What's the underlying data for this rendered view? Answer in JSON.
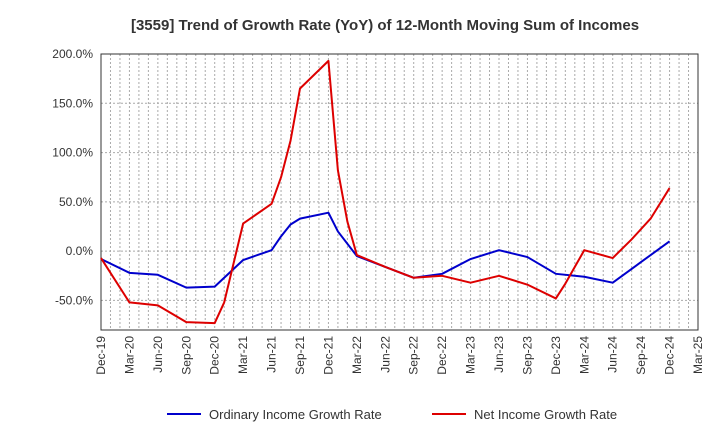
{
  "chart_data": {
    "type": "line",
    "title": "[3559]  Trend of Growth Rate (YoY) of 12-Month Moving Sum of Incomes",
    "xlabel": "",
    "ylabel": "",
    "ylim": [
      -80,
      200
    ],
    "yticks": [
      {
        "value": 200,
        "label": "200.0%"
      },
      {
        "value": 150,
        "label": "150.0%"
      },
      {
        "value": 100,
        "label": "100.0%"
      },
      {
        "value": 50,
        "label": "50.0%"
      },
      {
        "value": 0,
        "label": "0.0%"
      },
      {
        "value": -50,
        "label": "-50.0%"
      }
    ],
    "x_months": [
      "Dec-19",
      "Jan-20",
      "Feb-20",
      "Mar-20",
      "Apr-20",
      "May-20",
      "Jun-20",
      "Jul-20",
      "Aug-20",
      "Sep-20",
      "Oct-20",
      "Nov-20",
      "Dec-20",
      "Jan-21",
      "Feb-21",
      "Mar-21",
      "Apr-21",
      "May-21",
      "Jun-21",
      "Jul-21",
      "Aug-21",
      "Sep-21",
      "Oct-21",
      "Nov-21",
      "Dec-21",
      "Jan-22",
      "Feb-22",
      "Mar-22",
      "Apr-22",
      "May-22",
      "Jun-22",
      "Jul-22",
      "Aug-22",
      "Sep-22",
      "Oct-22",
      "Nov-22",
      "Dec-22",
      "Jan-23",
      "Feb-23",
      "Mar-23",
      "Apr-23",
      "May-23",
      "Jun-23",
      "Jul-23",
      "Aug-23",
      "Sep-23",
      "Oct-23",
      "Nov-23",
      "Dec-23",
      "Jan-24",
      "Feb-24",
      "Mar-24",
      "Apr-24",
      "May-24",
      "Jun-24",
      "Jul-24",
      "Aug-24",
      "Sep-24",
      "Oct-24",
      "Nov-24",
      "Dec-24",
      "Jan-25",
      "Feb-25",
      "Mar-25"
    ],
    "x_tick_labels": [
      "Dec-19",
      "Mar-20",
      "Jun-20",
      "Sep-20",
      "Dec-20",
      "Mar-21",
      "Jun-21",
      "Sep-21",
      "Dec-21",
      "Mar-22",
      "Jun-22",
      "Sep-22",
      "Dec-22",
      "Mar-23",
      "Jun-23",
      "Sep-23",
      "Dec-23",
      "Mar-24",
      "Jun-24",
      "Sep-24",
      "Dec-24",
      "Mar-25"
    ],
    "grid": true,
    "legend_position": "bottom",
    "series": [
      {
        "name": "Ordinary Income Growth Rate",
        "color": "#0000cc",
        "points": [
          [
            "Dec-19",
            -8
          ],
          [
            "Mar-20",
            -22
          ],
          [
            "Jun-20",
            -24
          ],
          [
            "Sep-20",
            -37
          ],
          [
            "Dec-20",
            -36
          ],
          [
            "Mar-21",
            -9
          ],
          [
            "Jun-21",
            1
          ],
          [
            "Jul-21",
            15
          ],
          [
            "Aug-21",
            27
          ],
          [
            "Sep-21",
            33
          ],
          [
            "Dec-21",
            39
          ],
          [
            "Jan-22",
            20
          ],
          [
            "Mar-22",
            -5
          ],
          [
            "Jun-22",
            -16
          ],
          [
            "Sep-22",
            -27
          ],
          [
            "Dec-22",
            -23
          ],
          [
            "Mar-23",
            -8
          ],
          [
            "Jun-23",
            1
          ],
          [
            "Sep-23",
            -6
          ],
          [
            "Dec-23",
            -23
          ],
          [
            "Mar-24",
            -26
          ],
          [
            "Jun-24",
            -32
          ],
          [
            "Sep-24",
            -11
          ],
          [
            "Dec-24",
            10
          ]
        ]
      },
      {
        "name": "Net Income Growth Rate",
        "color": "#dd0000",
        "points": [
          [
            "Dec-19",
            -7
          ],
          [
            "Mar-20",
            -52
          ],
          [
            "Jun-20",
            -55
          ],
          [
            "Sep-20",
            -72
          ],
          [
            "Dec-20",
            -73
          ],
          [
            "Jan-21",
            -52
          ],
          [
            "Mar-21",
            28
          ],
          [
            "Jun-21",
            48
          ],
          [
            "Jul-21",
            75
          ],
          [
            "Aug-21",
            112
          ],
          [
            "Sep-21",
            165
          ],
          [
            "Dec-21",
            193
          ],
          [
            "Jan-22",
            82
          ],
          [
            "Feb-22",
            30
          ],
          [
            "Mar-22",
            -4
          ],
          [
            "Jun-22",
            -16
          ],
          [
            "Sep-22",
            -27
          ],
          [
            "Dec-22",
            -25
          ],
          [
            "Mar-23",
            -32
          ],
          [
            "Jun-23",
            -25
          ],
          [
            "Sep-23",
            -34
          ],
          [
            "Dec-23",
            -48
          ],
          [
            "Jan-24",
            -33
          ],
          [
            "Mar-24",
            1
          ],
          [
            "Jun-24",
            -7
          ],
          [
            "Aug-24",
            12
          ],
          [
            "Oct-24",
            33
          ],
          [
            "Dec-24",
            64
          ]
        ]
      }
    ]
  }
}
